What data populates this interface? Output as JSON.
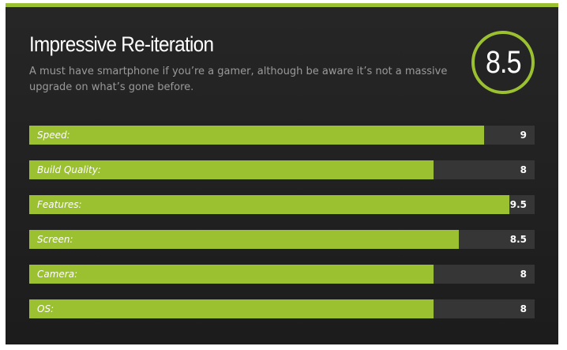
{
  "review": {
    "title": "Impressive Re-iteration",
    "summary": "A must have smartphone if you’re a gamer, although be aware it’s not a massive upgrade on what’s gone before.",
    "overall_score": "8.5",
    "max_score": 10,
    "accent_color": "#9bc130",
    "background_color": "#222222",
    "track_color": "#363636"
  },
  "ratings": [
    {
      "label": "Speed:",
      "value": "9",
      "score": 9
    },
    {
      "label": "Build Quality:",
      "value": "8",
      "score": 8
    },
    {
      "label": "Features:",
      "value": "9.5",
      "score": 9.5
    },
    {
      "label": "Screen:",
      "value": "8.5",
      "score": 8.5
    },
    {
      "label": "Camera:",
      "value": "8",
      "score": 8
    },
    {
      "label": "OS:",
      "value": "8",
      "score": 8
    }
  ]
}
